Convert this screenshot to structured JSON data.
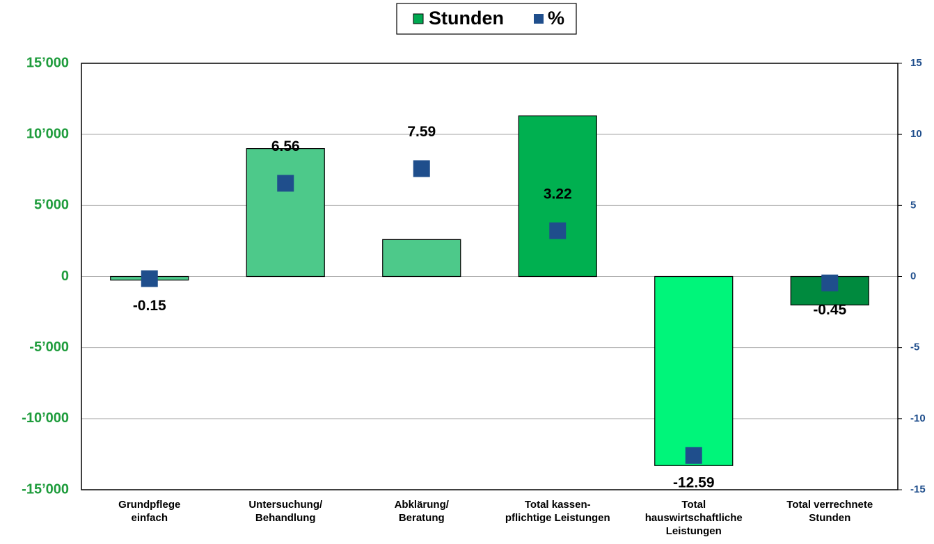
{
  "chart_data": {
    "type": "bar",
    "categories": [
      [
        "Grundpflege",
        "einfach"
      ],
      [
        "Untersuchung/",
        "Behandlung"
      ],
      [
        "Abklärung/",
        "Beratung"
      ],
      [
        "Total kassen-",
        "pflichtige Leistungen"
      ],
      [
        "Total",
        "hauswirtschaftliche",
        "Leistungen"
      ],
      [
        "Total verrechnete",
        "Stunden"
      ]
    ],
    "series": [
      {
        "name": "Stunden",
        "color": "#00a850",
        "colors": [
          "#4dc98a",
          "#4dc98a",
          "#4dc98a",
          "#00b050",
          "#00f57a",
          "#008a3e"
        ],
        "values": [
          -250,
          9000,
          2600,
          11300,
          -13300,
          -2000
        ]
      },
      {
        "name": "%",
        "color": "#1f4e8c",
        "axis": "y2",
        "values": [
          -0.15,
          6.56,
          7.59,
          3.22,
          -12.59,
          -0.45
        ]
      }
    ],
    "ylim": [
      -15000,
      15000
    ],
    "yticks": [
      {
        "value": -15000,
        "label": "-15’000"
      },
      {
        "value": -10000,
        "label": "-10’000"
      },
      {
        "value": -5000,
        "label": "-5’000"
      },
      0,
      {
        "value": 5000,
        "label": "5’000"
      },
      {
        "value": 10000,
        "label": "10’000"
      },
      {
        "value": 15000,
        "label": "15’000"
      }
    ],
    "y2lim": [
      -15,
      15
    ],
    "y2ticks": [
      -15,
      -10,
      -5,
      0,
      5,
      10,
      15
    ],
    "grid": true,
    "legend": "top"
  }
}
